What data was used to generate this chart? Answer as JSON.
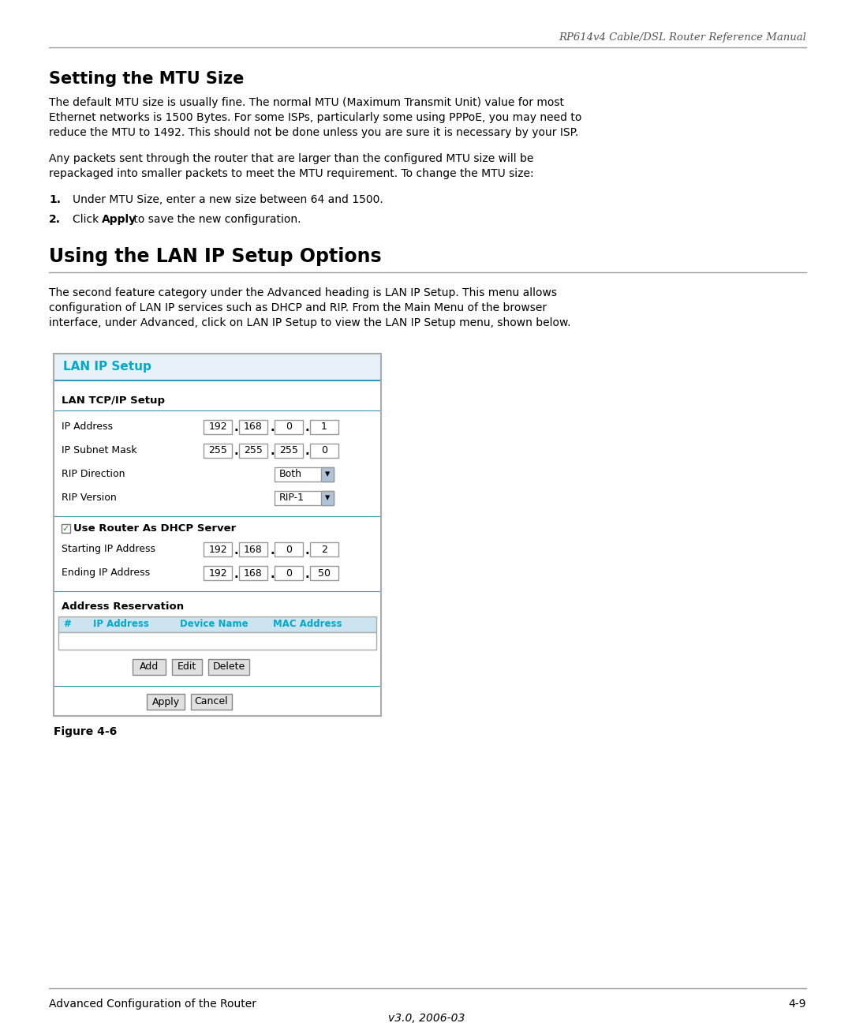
{
  "header_text": "RP614v4 Cable/DSL Router Reference Manual",
  "section1_title": "Setting the MTU Size",
  "section1_body": [
    "The default MTU size is usually fine. The normal MTU (Maximum Transmit Unit) value for most",
    "Ethernet networks is 1500 Bytes. For some ISPs, particularly some using PPPoE, you may need to",
    "reduce the MTU to 1492. This should not be done unless you are sure it is necessary by your ISP."
  ],
  "section1_body2": [
    "Any packets sent through the router that are larger than the configured MTU size will be",
    "repackaged into smaller packets to meet the MTU requirement. To change the MTU size:"
  ],
  "step1": "Under MTU Size, enter a new size between 64 and 1500.",
  "step2_pre": "Click ",
  "step2_bold": "Apply",
  "step2_post": " to save the new configuration.",
  "section2_title": "Using the LAN IP Setup Options",
  "section2_body": [
    "The second feature category under the Advanced heading is LAN IP Setup. This menu allows",
    "configuration of LAN IP services such as DHCP and RIP. From the Main Menu of the browser",
    "interface, under Advanced, click on LAN IP Setup to view the LAN IP Setup menu, shown below."
  ],
  "figure_label": "Figure 4-6",
  "footer_left": "Advanced Configuration of the Router",
  "footer_right": "4-9",
  "footer_center": "v3.0, 2006-03",
  "bg_color": "#ffffff",
  "text_color": "#000000",
  "header_color": "#555555",
  "title_color": "#000000",
  "cyan_color": "#00aacc",
  "gui_title_color": "#00aacc",
  "gui_blue_line": "#3399bb"
}
